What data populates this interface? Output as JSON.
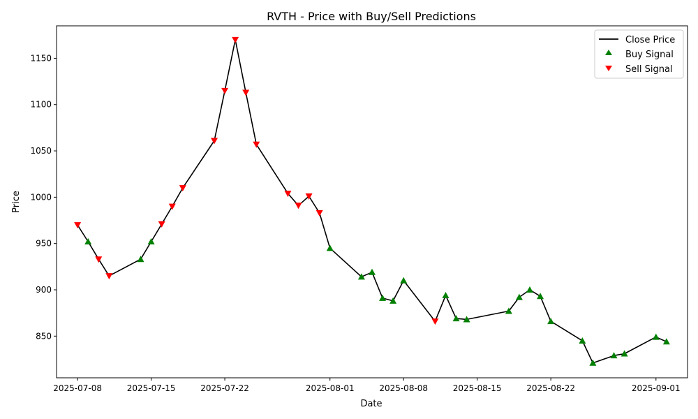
{
  "chart_data": {
    "type": "line",
    "title": "RVTH - Price with Buy/Sell Predictions",
    "xlabel": "Date",
    "ylabel": "Price",
    "xlim": [
      "2025-07-06",
      "2025-09-04"
    ],
    "ylim": [
      805,
      1185
    ],
    "grid": false,
    "legend_position": "top-right",
    "x_ticks": [
      "2025-07-08",
      "2025-07-15",
      "2025-07-22",
      "2025-08-01",
      "2025-08-08",
      "2025-08-15",
      "2025-08-22",
      "2025-09-01"
    ],
    "y_ticks": [
      850,
      900,
      950,
      1000,
      1050,
      1100,
      1150
    ],
    "series": [
      {
        "name": "Close Price",
        "kind": "line",
        "color": "#000000",
        "x": [
          "2025-07-08",
          "2025-07-09",
          "2025-07-10",
          "2025-07-11",
          "2025-07-14",
          "2025-07-15",
          "2025-07-16",
          "2025-07-17",
          "2025-07-18",
          "2025-07-21",
          "2025-07-22",
          "2025-07-23",
          "2025-07-24",
          "2025-07-25",
          "2025-07-28",
          "2025-07-29",
          "2025-07-30",
          "2025-07-31",
          "2025-08-01",
          "2025-08-04",
          "2025-08-05",
          "2025-08-06",
          "2025-08-07",
          "2025-08-08",
          "2025-08-11",
          "2025-08-12",
          "2025-08-13",
          "2025-08-14",
          "2025-08-18",
          "2025-08-19",
          "2025-08-20",
          "2025-08-21",
          "2025-08-22",
          "2025-08-25",
          "2025-08-26",
          "2025-08-28",
          "2025-08-29",
          "2025-09-01",
          "2025-09-02"
        ],
        "values": [
          970,
          952,
          933,
          915,
          933,
          952,
          971,
          990,
          1010,
          1061,
          1115,
          1170,
          1113,
          1057,
          1004,
          991,
          1001,
          983,
          945,
          914,
          919,
          891,
          888,
          910,
          866,
          894,
          869,
          868,
          877,
          892,
          900,
          893,
          866,
          845,
          821,
          829,
          831,
          849,
          844
        ]
      },
      {
        "name": "Buy Signal",
        "kind": "scatter",
        "marker": "triangle-up",
        "color": "#008000",
        "x": [
          "2025-07-09",
          "2025-07-14",
          "2025-07-15",
          "2025-08-01",
          "2025-08-04",
          "2025-08-05",
          "2025-08-06",
          "2025-08-07",
          "2025-08-08",
          "2025-08-12",
          "2025-08-13",
          "2025-08-14",
          "2025-08-18",
          "2025-08-19",
          "2025-08-20",
          "2025-08-21",
          "2025-08-22",
          "2025-08-25",
          "2025-08-26",
          "2025-08-28",
          "2025-08-29",
          "2025-09-01",
          "2025-09-02"
        ],
        "values": [
          952,
          933,
          952,
          945,
          914,
          919,
          891,
          888,
          910,
          894,
          869,
          868,
          877,
          892,
          900,
          893,
          866,
          845,
          821,
          829,
          831,
          849,
          844
        ]
      },
      {
        "name": "Sell Signal",
        "kind": "scatter",
        "marker": "triangle-down",
        "color": "#ff0000",
        "x": [
          "2025-07-08",
          "2025-07-10",
          "2025-07-11",
          "2025-07-16",
          "2025-07-17",
          "2025-07-18",
          "2025-07-21",
          "2025-07-22",
          "2025-07-23",
          "2025-07-24",
          "2025-07-25",
          "2025-07-28",
          "2025-07-29",
          "2025-07-30",
          "2025-07-31",
          "2025-08-11"
        ],
        "values": [
          970,
          933,
          915,
          971,
          990,
          1010,
          1061,
          1115,
          1170,
          1113,
          1057,
          1004,
          991,
          1001,
          983,
          866
        ]
      }
    ]
  }
}
